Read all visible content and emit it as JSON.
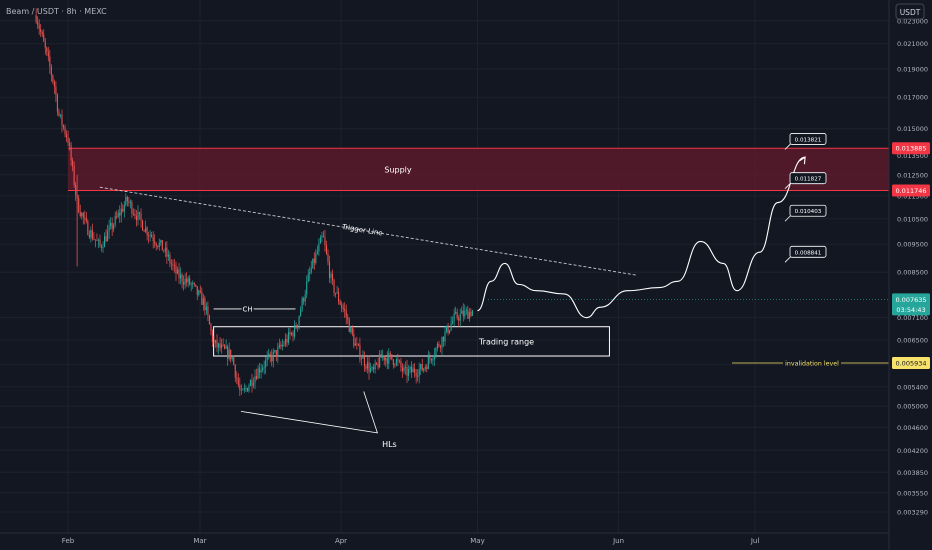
{
  "header": {
    "symbol_title": "Beam / USDT · 8h · MEXC"
  },
  "currency_badge": "USDT",
  "colors": {
    "background": "#131722",
    "up_candle": "#26a69a",
    "down_candle": "#ef5350",
    "supply_zone": "#5c1a2b",
    "supply_border": "#f23645",
    "current_price": "#26a69a",
    "invalidation": "#f7e26b",
    "grid": "#1e222d",
    "annotation": "#ffffff"
  },
  "chart_data": {
    "type": "candlestick",
    "y_scale": "log",
    "ylim": [
      0.0031,
      0.024
    ],
    "y_ticks": [
      "0.023000",
      "0.021000",
      "0.019000",
      "0.017000",
      "0.015000",
      "0.013500",
      "0.012500",
      "0.011500",
      "0.010500",
      "0.009500",
      "0.008500",
      "0.007100",
      "0.006500",
      "0.005900",
      "0.005400",
      "0.005000",
      "0.004600",
      "0.004200",
      "0.003850",
      "0.003550",
      "0.003290"
    ],
    "x_labels": [
      "Feb",
      "Mar",
      "Apr",
      "May",
      "Jun",
      "Jul"
    ],
    "x_label_dates": [
      "2024-02-01",
      "2024-03-01",
      "2024-04-01",
      "2024-05-01",
      "2024-06-01",
      "2024-07-01"
    ],
    "candle_path": [
      [
        "2024-01-25",
        0.0235
      ],
      [
        "2024-01-27",
        0.0205
      ],
      [
        "2024-01-29",
        0.0178
      ],
      [
        "2024-01-30",
        0.0158
      ],
      [
        "2024-02-01",
        0.0144
      ],
      [
        "2024-02-03",
        0.0112
      ],
      [
        "2024-02-05",
        0.0102
      ],
      [
        "2024-02-08",
        0.0094
      ],
      [
        "2024-02-11",
        0.0103
      ],
      [
        "2024-02-14",
        0.0113
      ],
      [
        "2024-02-18",
        0.0101
      ],
      [
        "2024-02-22",
        0.0093
      ],
      [
        "2024-02-25",
        0.0084
      ],
      [
        "2024-02-28",
        0.0081
      ],
      [
        "2024-03-02",
        0.0075
      ],
      [
        "2024-03-04",
        0.0064
      ],
      [
        "2024-03-08",
        0.0061
      ],
      [
        "2024-03-10",
        0.0052
      ],
      [
        "2024-03-14",
        0.0058
      ],
      [
        "2024-03-18",
        0.0062
      ],
      [
        "2024-03-22",
        0.0068
      ],
      [
        "2024-03-25",
        0.0084
      ],
      [
        "2024-03-28",
        0.0098
      ],
      [
        "2024-03-30",
        0.0081
      ],
      [
        "2024-04-02",
        0.0072
      ],
      [
        "2024-04-04",
        0.0064
      ],
      [
        "2024-04-06",
        0.006
      ],
      [
        "2024-04-08",
        0.0057
      ],
      [
        "2024-04-10",
        0.0061
      ],
      [
        "2024-04-13",
        0.006
      ],
      [
        "2024-04-15",
        0.0057
      ],
      [
        "2024-04-19",
        0.0058
      ],
      [
        "2024-04-22",
        0.0063
      ],
      [
        "2024-04-26",
        0.0071
      ],
      [
        "2024-04-28",
        0.0072
      ],
      [
        "2024-04-30",
        0.0073
      ]
    ],
    "supply_zone": {
      "label": "Supply",
      "top": 0.013885,
      "bottom": 0.011746,
      "start": "2024-02-01"
    },
    "trading_range": {
      "label": "Trading range",
      "top": 0.00685,
      "bottom": 0.0061,
      "start": "2024-03-04",
      "end": "2024-05-30"
    },
    "trigger_line": {
      "label": "Trigger Line",
      "from": [
        "2024-02-08",
        0.0119
      ],
      "to": [
        "2024-06-05",
        0.0084
      ]
    },
    "ch_line": {
      "label": "CH",
      "from": [
        "2024-03-04",
        0.00735
      ],
      "to": [
        "2024-03-22",
        0.00735
      ]
    },
    "higher_lows": {
      "label": "HLs",
      "points": [
        [
          "2024-03-10",
          0.0049
        ],
        [
          "2024-04-09",
          0.0045
        ],
        [
          "2024-04-06",
          0.0053
        ]
      ]
    },
    "projection": [
      [
        "2024-05-01",
        0.0073
      ],
      [
        "2024-05-04",
        0.0082
      ],
      [
        "2024-05-07",
        0.0088
      ],
      [
        "2024-05-10",
        0.0081
      ],
      [
        "2024-05-14",
        0.0079
      ],
      [
        "2024-05-20",
        0.0078
      ],
      [
        "2024-05-25",
        0.0071
      ],
      [
        "2024-05-28",
        0.0074
      ],
      [
        "2024-06-03",
        0.0079
      ],
      [
        "2024-06-10",
        0.008
      ],
      [
        "2024-06-14",
        0.0082
      ],
      [
        "2024-06-19",
        0.0096
      ],
      [
        "2024-06-24",
        0.0088
      ],
      [
        "2024-06-27",
        0.0079
      ],
      [
        "2024-07-02",
        0.0092
      ],
      [
        "2024-07-06",
        0.0112
      ],
      [
        "2024-07-12",
        0.0134
      ]
    ],
    "targets": [
      {
        "label": "0.013821",
        "value": 0.01382
      },
      {
        "label": "0.011827",
        "value": 0.01183
      },
      {
        "label": "0.010403",
        "value": 0.0104
      },
      {
        "label": "0.008841",
        "value": 0.00884
      }
    ],
    "invalidation": {
      "label": "invalidation level",
      "value": 0.005934,
      "tag": "0.005934"
    },
    "price_tags": {
      "supply_top": "0.013885",
      "supply_bottom": "0.011746",
      "current_price": "0.007635",
      "countdown": "03:54:43"
    }
  }
}
